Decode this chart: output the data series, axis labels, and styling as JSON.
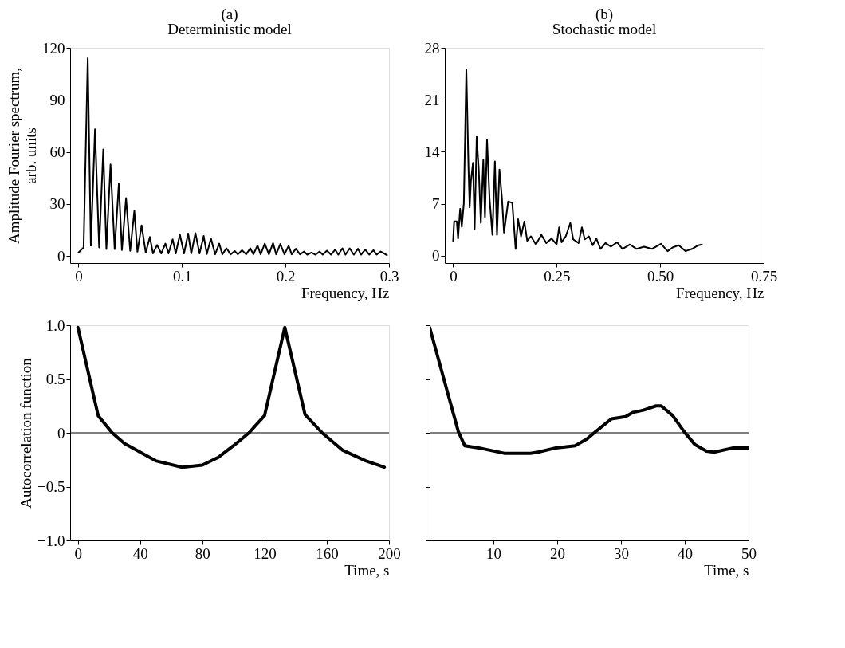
{
  "chart_data": [
    {
      "type": "line",
      "title": "(a)",
      "subtitle": "Deterministic model",
      "xlabel": "Frequency, Hz",
      "ylabel": "Amplitude Fourier spectrum, arb. units",
      "xlim": [
        -0.008,
        0.3
      ],
      "ylim": [
        -4,
        120
      ],
      "xticks": [
        0,
        0.1,
        0.2,
        0.3
      ],
      "yticks": [
        0,
        30,
        60,
        90,
        120
      ],
      "grid": false,
      "x": [
        0.0,
        0.005,
        0.009,
        0.012,
        0.016,
        0.02,
        0.024,
        0.027,
        0.031,
        0.035,
        0.039,
        0.042,
        0.046,
        0.05,
        0.054,
        0.057,
        0.061,
        0.065,
        0.069,
        0.072,
        0.076,
        0.08,
        0.084,
        0.087,
        0.091,
        0.094,
        0.098,
        0.102,
        0.106,
        0.109,
        0.113,
        0.117,
        0.121,
        0.124,
        0.128,
        0.132,
        0.136,
        0.139,
        0.143,
        0.147,
        0.151,
        0.154,
        0.158,
        0.162,
        0.166,
        0.169,
        0.173,
        0.176,
        0.18,
        0.184,
        0.188,
        0.191,
        0.195,
        0.199,
        0.203,
        0.206,
        0.21,
        0.214,
        0.218,
        0.221,
        0.225,
        0.229,
        0.233,
        0.236,
        0.24,
        0.244,
        0.248,
        0.251,
        0.255,
        0.258,
        0.262,
        0.266,
        0.27,
        0.273,
        0.277,
        0.281,
        0.285,
        0.288,
        0.292,
        0.298
      ],
      "series": [
        {
          "color": "#000000",
          "values": [
            2,
            5,
            114,
            6,
            73,
            5,
            61.5,
            4,
            52.8,
            4,
            41.6,
            3.5,
            33.4,
            3,
            26,
            2.5,
            17.7,
            2,
            11,
            1.5,
            6.4,
            1.5,
            7.2,
            1.5,
            9.7,
            1.5,
            12.4,
            1.5,
            13,
            1.5,
            13.2,
            1.5,
            11.6,
            1.2,
            10.2,
            1,
            7.2,
            1,
            4.5,
            1,
            2.9,
            1,
            3.4,
            1,
            4.5,
            1,
            6.1,
            1,
            7.2,
            1,
            7.5,
            1,
            7,
            1,
            5.9,
            1,
            4.2,
            1,
            2.6,
            0.8,
            2,
            0.8,
            2.6,
            0.8,
            3.1,
            0.8,
            3.7,
            0.8,
            4.5,
            0.8,
            4.5,
            0.8,
            4.2,
            0.8,
            3.8,
            0.8,
            3.4,
            0.8,
            2.6,
            0.5
          ]
        }
      ]
    },
    {
      "type": "line",
      "title": "(b)",
      "subtitle": "Stochastic model",
      "xlabel": "Frequency, Hz",
      "xlim": [
        -0.02,
        0.75
      ],
      "ylim": [
        -1,
        28
      ],
      "xticks": [
        0,
        {
          "value": 0.25,
          "label": "0.25"
        },
        {
          "value": 0.5,
          "label": "0.50"
        },
        {
          "value": 0.75,
          "label": "0.75"
        }
      ],
      "yticks": [
        0,
        7,
        14,
        21,
        28
      ],
      "grid": false,
      "line_style": "solid",
      "x": [
        0,
        0.0025,
        0.009,
        0.012,
        0.017,
        0.021,
        0.026,
        0.032,
        0.037,
        0.04,
        0.043,
        0.048,
        0.052,
        0.057,
        0.062,
        0.067,
        0.073,
        0.077,
        0.082,
        0.088,
        0.095,
        0.101,
        0.106,
        0.112,
        0.118,
        0.123,
        0.133,
        0.143,
        0.151,
        0.157,
        0.164,
        0.172,
        0.179,
        0.188,
        0.2,
        0.213,
        0.225,
        0.238,
        0.25,
        0.256,
        0.262,
        0.272,
        0.283,
        0.29,
        0.303,
        0.311,
        0.318,
        0.328,
        0.337,
        0.346,
        0.356,
        0.368,
        0.381,
        0.396,
        0.409,
        0.427,
        0.443,
        0.461,
        0.48,
        0.502,
        0.518,
        0.53,
        0.545,
        0.561,
        0.577,
        0.592,
        0.601
      ],
      "series": [
        {
          "color": "#000000",
          "values": [
            1.9,
            4.6,
            4.6,
            2.3,
            6.3,
            3.9,
            7.1,
            25.1,
            12.2,
            6.5,
            10,
            12.5,
            3.6,
            16,
            11.6,
            4.4,
            12.9,
            5.2,
            15.6,
            7.7,
            2.8,
            12.7,
            2.8,
            11.6,
            7.7,
            3.1,
            7.3,
            7.1,
            0.9,
            4.9,
            2.6,
            4.6,
            2.0,
            2.6,
            1.5,
            2.8,
            1.7,
            2.3,
            1.5,
            3.8,
            1.8,
            2.6,
            4.4,
            2.2,
            1.7,
            3.8,
            2.2,
            2.6,
            1.4,
            2.3,
            0.9,
            1.7,
            1.2,
            1.8,
            0.9,
            1.5,
            0.9,
            1.2,
            0.9,
            1.6,
            0.6,
            1.1,
            1.4,
            0.6,
            0.9,
            1.4,
            1.5
          ]
        }
      ]
    },
    {
      "type": "line",
      "xlabel": "Time, s",
      "ylabel": "Autocorrelation function",
      "xlim": [
        -5,
        200
      ],
      "ylim": [
        -1,
        1
      ],
      "xticks": [
        0,
        40,
        80,
        120,
        160,
        200
      ],
      "yticks": [
        {
          "value": -1,
          "label": "−1.0"
        },
        {
          "value": -0.5,
          "label": "−0.5"
        },
        0,
        {
          "value": 0.5,
          "label": "0.5"
        },
        {
          "value": 1,
          "label": "1.0"
        }
      ],
      "grid": false,
      "ref_lines": [
        {
          "axis": "y",
          "value": 0,
          "color": "#000000"
        }
      ],
      "x": [
        0,
        13,
        22,
        30,
        40,
        50,
        67,
        80,
        90,
        100,
        110,
        120,
        133,
        146,
        157,
        170,
        185,
        197
      ],
      "series": [
        {
          "color": "#000000",
          "values": [
            0.98,
            0.16,
            0,
            -0.1,
            -0.18,
            -0.26,
            -0.32,
            -0.3,
            -0.23,
            -0.12,
            0,
            0.16,
            0.98,
            0.17,
            0,
            -0.16,
            -0.26,
            -0.32
          ]
        }
      ]
    },
    {
      "type": "line",
      "xlabel": "Time, s",
      "xlim": [
        0,
        50
      ],
      "ylim": [
        -1,
        1
      ],
      "xticks": [
        10,
        20,
        30,
        40,
        50
      ],
      "yticks": [
        {
          "value": -1,
          "label": null
        },
        {
          "value": -0.5,
          "label": null
        },
        {
          "value": 0,
          "label": null
        },
        {
          "value": 0.5,
          "label": null
        },
        {
          "value": 1,
          "label": null
        }
      ],
      "grid": false,
      "tick_labels": "x",
      "ref_lines": [
        {
          "axis": "y",
          "value": 0,
          "color": "#000000"
        }
      ],
      "x": [
        0,
        4.5,
        5.5,
        7.7,
        11.7,
        15.8,
        17,
        19.8,
        22.8,
        24.6,
        25.8,
        28.5,
        30.7,
        31.9,
        33.5,
        35.5,
        36.3,
        38.1,
        39.9,
        41.6,
        43.4,
        44.6,
        47.6,
        50
      ],
      "series": [
        {
          "color": "#000000",
          "values": [
            0.98,
            0.01,
            -0.12,
            -0.14,
            -0.19,
            -0.19,
            -0.18,
            -0.14,
            -0.12,
            -0.06,
            0,
            0.13,
            0.15,
            0.19,
            0.21,
            0.25,
            0.25,
            0.16,
            0.01,
            -0.11,
            -0.17,
            -0.18,
            -0.14,
            -0.14
          ]
        }
      ]
    }
  ]
}
